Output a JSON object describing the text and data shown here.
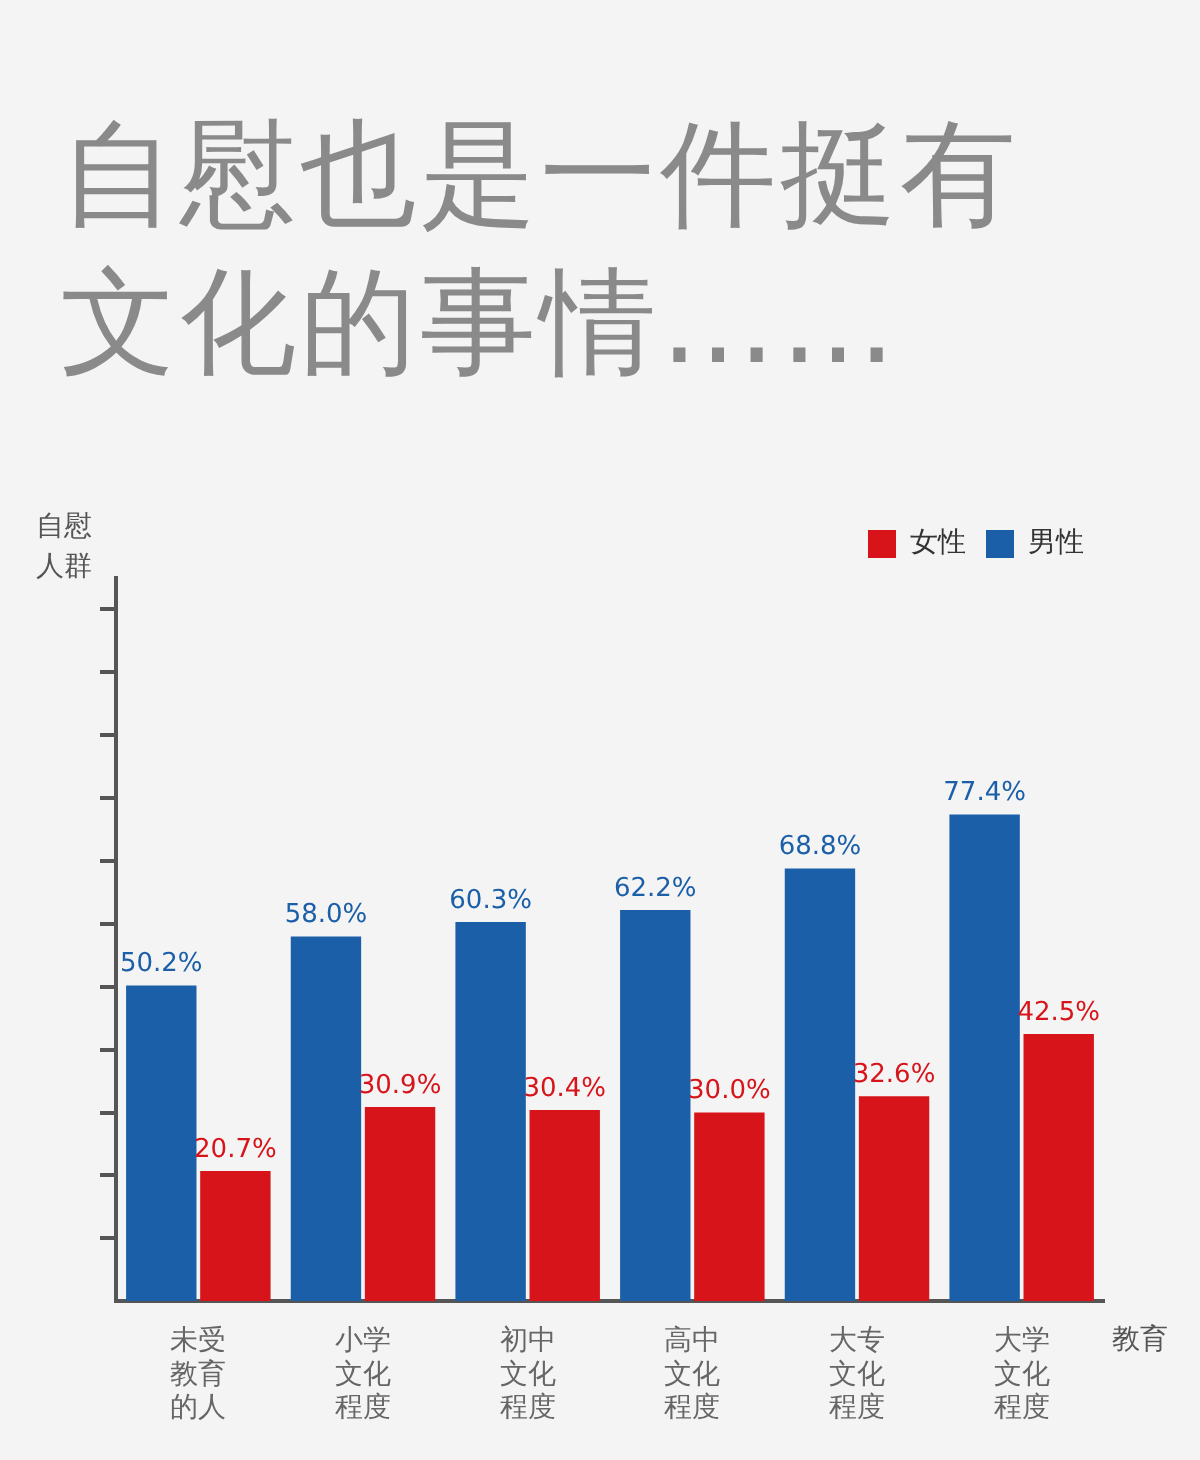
{
  "chart_data": {
    "type": "bar",
    "title": "自慰也是一件挺有文化的事情……",
    "ylabel": "自慰人群",
    "xlabel": "教育",
    "categories": [
      "未受教育的人",
      "小学文化程度",
      "初中文化程度",
      "高中文化程度",
      "大专文化程度",
      "大学文化程度"
    ],
    "series": [
      {
        "name": "男性",
        "color": "#1a5fa8",
        "values": [
          50.2,
          58.0,
          60.3,
          62.2,
          68.8,
          77.4
        ],
        "value_labels": [
          "50.2%",
          "58.0%",
          "60.3%",
          "62.2%",
          "68.8%",
          "77.4%"
        ]
      },
      {
        "name": "女性",
        "color": "#d7141a",
        "values": [
          20.7,
          30.9,
          30.4,
          30.0,
          32.6,
          42.5
        ],
        "value_labels": [
          "20.7%",
          "30.9%",
          "30.4%",
          "30.0%",
          "32.6%",
          "42.5%"
        ]
      }
    ],
    "ylim": [
      0,
      115
    ],
    "yticks": [
      {
        "value": 10,
        "label": null
      },
      {
        "value": 20,
        "label": null
      },
      {
        "value": 30,
        "label": null
      },
      {
        "value": 40,
        "label": null
      },
      {
        "value": 50,
        "label": null
      },
      {
        "value": 60,
        "label": null
      },
      {
        "value": 70,
        "label": null
      },
      {
        "value": 80,
        "label": null
      },
      {
        "value": 90,
        "label": null
      },
      {
        "value": 100,
        "label": null
      },
      {
        "value": 110,
        "label": null
      }
    ],
    "tick_labels": "x",
    "grid": false,
    "legend": "top right"
  }
}
